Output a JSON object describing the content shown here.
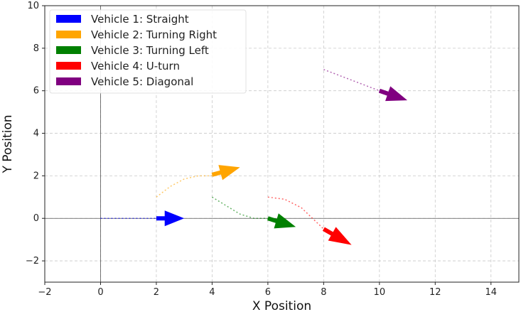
{
  "chart_data": {
    "type": "line",
    "title": "",
    "xlabel": "X Position",
    "ylabel": "Y Position",
    "xlim": [
      -2,
      15
    ],
    "ylim": [
      -3,
      10
    ],
    "xticks": [
      -2,
      0,
      2,
      4,
      6,
      8,
      10,
      12,
      14
    ],
    "yticks": [
      -2,
      0,
      2,
      4,
      6,
      8,
      10
    ],
    "grid": true,
    "reference_lines": {
      "x": 0,
      "y": 0
    },
    "legend_placement": "top-left",
    "series": [
      {
        "name": "Vehicle 1: Straight",
        "color": "#0000ff",
        "path": [
          [
            0,
            0
          ],
          [
            1,
            0
          ],
          [
            2,
            0
          ]
        ],
        "arrow": {
          "from": [
            2,
            0
          ],
          "to": [
            3,
            0
          ]
        }
      },
      {
        "name": "Vehicle 2: Turning Right",
        "color": "#ffa500",
        "path": [
          [
            2,
            1
          ],
          [
            2.5,
            1.5
          ],
          [
            3,
            1.85
          ],
          [
            3.5,
            2
          ],
          [
            4,
            2
          ]
        ],
        "arrow": {
          "from": [
            4,
            2.05
          ],
          "to": [
            5,
            2.4
          ]
        }
      },
      {
        "name": "Vehicle 3: Turning Left",
        "color": "#008000",
        "path": [
          [
            4,
            1
          ],
          [
            4.5,
            0.6
          ],
          [
            5,
            0.2
          ],
          [
            5.5,
            0
          ],
          [
            6,
            0
          ]
        ],
        "arrow": {
          "from": [
            6,
            0
          ],
          "to": [
            7,
            -0.4
          ]
        }
      },
      {
        "name": "Vehicle 4: U-turn",
        "color": "#ff0000",
        "path": [
          [
            6,
            1
          ],
          [
            6.6,
            0.9
          ],
          [
            7.2,
            0.5
          ],
          [
            7.6,
            0
          ],
          [
            8,
            -0.5
          ]
        ],
        "arrow": {
          "from": [
            8,
            -0.5
          ],
          "to": [
            9,
            -1.25
          ]
        }
      },
      {
        "name": "Vehicle 5: Diagonal",
        "color": "#800080",
        "path": [
          [
            8,
            7
          ],
          [
            9,
            6.5
          ],
          [
            10,
            6
          ]
        ],
        "arrow": {
          "from": [
            10,
            6
          ],
          "to": [
            11,
            5.55
          ]
        }
      }
    ]
  }
}
